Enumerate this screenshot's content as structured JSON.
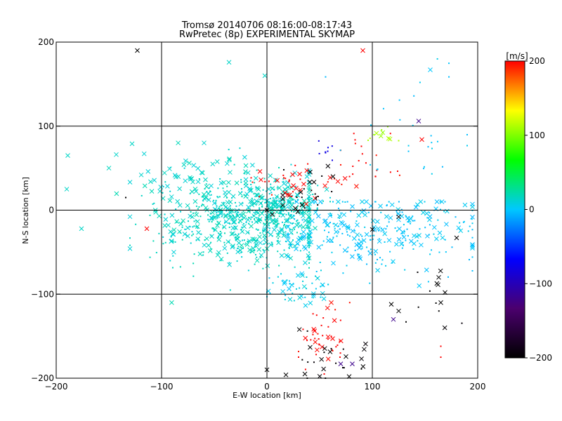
{
  "chart_data": {
    "type": "scatter",
    "title": "Tromsø 20140706 08:16:00-08:17:43",
    "subtitle": "RwPretec (8p) EXPERIMENTAL SKYMAP",
    "xlabel": "E-W location [km]",
    "ylabel": "N-S location [km]",
    "xlim": [
      -200,
      200
    ],
    "ylim": [
      -200,
      200
    ],
    "xticks": [
      -200,
      -100,
      0,
      100,
      200
    ],
    "yticks": [
      -200,
      -100,
      0,
      100,
      200
    ],
    "grid_lines": [
      -100,
      0,
      100
    ],
    "grid": true,
    "colorbar": {
      "label": "[m/s]",
      "range": [
        -200,
        200
      ],
      "ticks": [
        200,
        100,
        0,
        -100,
        -200
      ],
      "colormap": "rainbow",
      "stops": [
        "#000000",
        "#4b006e",
        "#0000ff",
        "#00c8ff",
        "#00ff00",
        "#ffff00",
        "#ff0000"
      ]
    },
    "markers": [
      "small dot",
      "x"
    ],
    "clusters": [
      {
        "velocity": 15,
        "marker": "mixed",
        "n": 620,
        "center": [
          -20,
          -10
        ],
        "spread": [
          45,
          28
        ],
        "xrange": [
          -130,
          40
        ],
        "yrange": [
          -110,
          75
        ]
      },
      {
        "velocity": 15,
        "marker": "mixed",
        "n": 160,
        "center": [
          10,
          5
        ],
        "spread": [
          20,
          14
        ],
        "xrange": [
          -30,
          60
        ],
        "yrange": [
          -40,
          40
        ]
      },
      {
        "velocity": 15,
        "marker": "x",
        "n": 45,
        "center": [
          -80,
          40
        ],
        "spread": [
          40,
          18
        ],
        "xrange": [
          -150,
          -20
        ],
        "yrange": [
          0,
          80
        ]
      },
      {
        "velocity": 0,
        "marker": "mixed",
        "n": 300,
        "center": [
          100,
          -25
        ],
        "spread": [
          55,
          25
        ],
        "xrange": [
          20,
          195
        ],
        "yrange": [
          -90,
          10
        ]
      },
      {
        "velocity": 5,
        "marker": "mixed",
        "n": 50,
        "center": [
          30,
          -90
        ],
        "spread": [
          20,
          12
        ],
        "xrange": [
          0,
          80
        ],
        "yrange": [
          -115,
          -60
        ]
      },
      {
        "velocity": 200,
        "marker": "mixed",
        "n": 45,
        "center": [
          55,
          -150
        ],
        "spread": [
          12,
          22
        ],
        "xrange": [
          30,
          90
        ],
        "yrange": [
          -195,
          -110
        ]
      },
      {
        "velocity": -200,
        "marker": "mixed",
        "n": 25,
        "center": [
          55,
          -175
        ],
        "spread": [
          25,
          18
        ],
        "xrange": [
          0,
          95
        ],
        "yrange": [
          -200,
          -140
        ]
      },
      {
        "velocity": 200,
        "marker": "mixed",
        "n": 40,
        "center": [
          25,
          30
        ],
        "spread": [
          25,
          12
        ],
        "xrange": [
          -40,
          90
        ],
        "yrange": [
          5,
          70
        ]
      },
      {
        "velocity": -200,
        "marker": "mixed",
        "n": 25,
        "center": [
          40,
          20
        ],
        "spread": [
          18,
          15
        ],
        "xrange": [
          15,
          80
        ],
        "yrange": [
          -10,
          55
        ]
      },
      {
        "velocity": 110,
        "marker": "mixed",
        "n": 12,
        "center": [
          110,
          90
        ],
        "spread": [
          8,
          6
        ],
        "xrange": [
          95,
          125
        ],
        "yrange": [
          80,
          100
        ]
      },
      {
        "velocity": 200,
        "marker": "dot",
        "n": 20,
        "center": [
          90,
          60
        ],
        "spread": [
          20,
          20
        ],
        "xrange": [
          70,
          135
        ],
        "yrange": [
          40,
          130
        ]
      },
      {
        "velocity": -80,
        "marker": "dot",
        "n": 8,
        "center": [
          55,
          75
        ],
        "spread": [
          5,
          8
        ],
        "xrange": [
          48,
          62
        ],
        "yrange": [
          55,
          90
        ]
      },
      {
        "velocity": 0,
        "marker": "dot",
        "n": 35,
        "center": [
          140,
          60
        ],
        "spread": [
          35,
          60
        ],
        "xrange": [
          20,
          190
        ],
        "yrange": [
          -50,
          180
        ]
      },
      {
        "velocity": -200,
        "marker": "mixed",
        "n": 10,
        "center": [
          160,
          -100
        ],
        "spread": [
          20,
          30
        ],
        "xrange": [
          115,
          185
        ],
        "yrange": [
          -150,
          -30
        ]
      }
    ],
    "points": [
      {
        "x": -123,
        "y": 190,
        "v": -200,
        "m": "x"
      },
      {
        "x": 91,
        "y": 190,
        "v": 200,
        "m": "x"
      },
      {
        "x": -36,
        "y": 176,
        "v": 15,
        "m": "x"
      },
      {
        "x": -2,
        "y": 160,
        "v": 15,
        "m": "x"
      },
      {
        "x": 155,
        "y": 167,
        "v": 0,
        "m": "x"
      },
      {
        "x": -189,
        "y": 65,
        "v": 15,
        "m": "x"
      },
      {
        "x": -190,
        "y": 25,
        "v": 15,
        "m": "x"
      },
      {
        "x": -176,
        "y": -22,
        "v": 15,
        "m": "x"
      },
      {
        "x": -114,
        "y": -22,
        "v": 200,
        "m": "x"
      },
      {
        "x": -128,
        "y": 79,
        "v": 15,
        "m": "x"
      },
      {
        "x": 144,
        "y": 106,
        "v": -120,
        "m": "x"
      },
      {
        "x": 147,
        "y": 84,
        "v": 200,
        "m": "x"
      },
      {
        "x": 100,
        "y": -23,
        "v": -200,
        "m": "x"
      },
      {
        "x": 125,
        "y": -8,
        "v": -200,
        "m": "x"
      },
      {
        "x": 180,
        "y": -33,
        "v": -200,
        "m": "x"
      },
      {
        "x": 163,
        "y": -80,
        "v": -200,
        "m": "x"
      },
      {
        "x": 169,
        "y": -98,
        "v": -200,
        "m": "x"
      },
      {
        "x": 165,
        "y": -110,
        "v": -200,
        "m": "x"
      },
      {
        "x": 118,
        "y": -112,
        "v": -200,
        "m": "x"
      },
      {
        "x": 125,
        "y": -120,
        "v": -200,
        "m": "x"
      },
      {
        "x": 120,
        "y": -130,
        "v": -120,
        "m": "x"
      },
      {
        "x": 132,
        "y": -133,
        "v": -200,
        "m": "dot"
      },
      {
        "x": 165,
        "y": -162,
        "v": 200,
        "m": "dot"
      },
      {
        "x": 165,
        "y": -175,
        "v": 200,
        "m": "dot"
      },
      {
        "x": 70,
        "y": -183,
        "v": -120,
        "m": "x"
      },
      {
        "x": 81,
        "y": -183,
        "v": -120,
        "m": "x"
      },
      {
        "x": 0,
        "y": -190,
        "v": -200,
        "m": "x"
      },
      {
        "x": 18,
        "y": -196,
        "v": -200,
        "m": "x"
      },
      {
        "x": 36,
        "y": -195,
        "v": -200,
        "m": "x"
      },
      {
        "x": 78,
        "y": -198,
        "v": -200,
        "m": "x"
      },
      {
        "x": -134,
        "y": 15,
        "v": -200,
        "m": "dot"
      },
      {
        "x": 0,
        "y": 0,
        "v": -200,
        "m": "x"
      },
      {
        "x": 5,
        "y": -5,
        "v": -200,
        "m": "x"
      }
    ]
  }
}
